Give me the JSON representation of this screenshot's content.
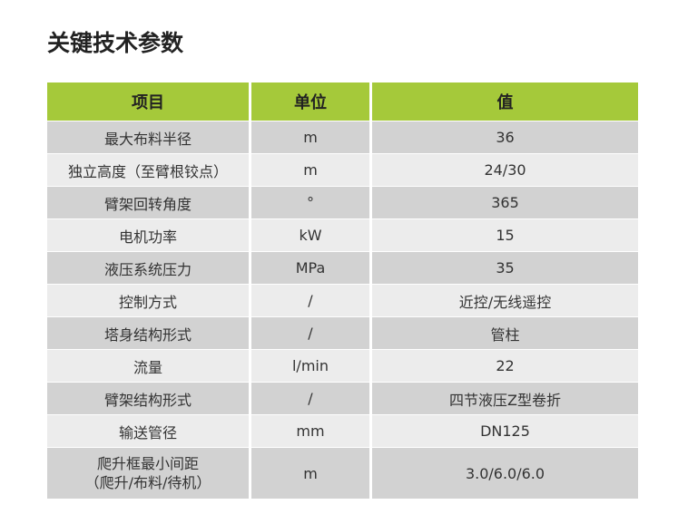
{
  "title": "关键技术参数",
  "colors": {
    "header": "#a5c93a",
    "row_odd": "#d2d2d2",
    "row_even": "#ececec"
  },
  "headers": [
    "项目",
    "单位",
    "值"
  ],
  "rows": [
    [
      "最大布料半径",
      "m",
      "36"
    ],
    [
      "独立高度（至臂根铰点）",
      "m",
      "24/30"
    ],
    [
      "臂架回转角度",
      "°",
      "365"
    ],
    [
      "电机功率",
      "kW",
      "15"
    ],
    [
      "液压系统压力",
      "MPa",
      "35"
    ],
    [
      "控制方式",
      "/",
      "近控/无线遥控"
    ],
    [
      "塔身结构形式",
      "/",
      "管柱"
    ],
    [
      "流量",
      "l/min",
      "22"
    ],
    [
      "臂架结构形式",
      "/",
      "四节液压Z型卷折"
    ],
    [
      "输送管径",
      "mm",
      "DN125"
    ],
    [
      "爬升框最小间距\n（爬升/布料/待机）",
      "m",
      "3.0/6.0/6.0"
    ]
  ]
}
